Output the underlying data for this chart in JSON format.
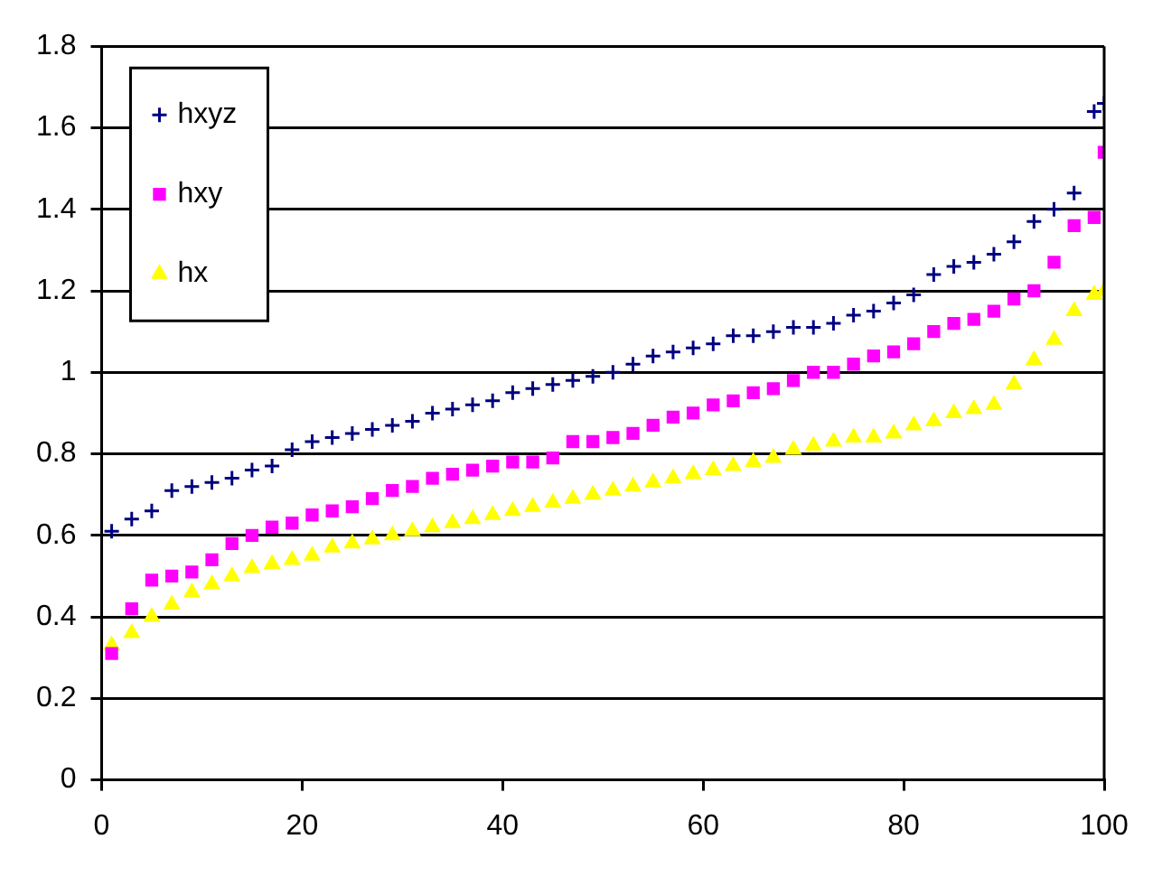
{
  "chart_data": {
    "type": "scatter",
    "xlim": [
      0,
      100
    ],
    "xticks": [
      0,
      20,
      40,
      60,
      80,
      100
    ],
    "ylim": [
      0,
      1.8
    ],
    "yticks": [
      0,
      0.2,
      0.4,
      0.6,
      0.8,
      1,
      1.2,
      1.4,
      1.6,
      1.8
    ],
    "grid": "y",
    "legend": "top left",
    "x": [
      1,
      3,
      5,
      7,
      9,
      11,
      13,
      15,
      17,
      19,
      21,
      23,
      25,
      27,
      29,
      31,
      33,
      35,
      37,
      39,
      41,
      43,
      45,
      47,
      49,
      51,
      53,
      55,
      57,
      59,
      61,
      63,
      65,
      67,
      69,
      71,
      73,
      75,
      77,
      79,
      81,
      83,
      85,
      87,
      89,
      91,
      93,
      95,
      97,
      99,
      100
    ],
    "series": [
      {
        "name": "hxyz",
        "color": "#000080",
        "marker": "cross",
        "values": [
          0.61,
          0.64,
          0.66,
          0.71,
          0.72,
          0.73,
          0.74,
          0.76,
          0.77,
          0.81,
          0.83,
          0.84,
          0.85,
          0.86,
          0.87,
          0.88,
          0.9,
          0.91,
          0.92,
          0.93,
          0.95,
          0.96,
          0.97,
          0.98,
          0.99,
          1,
          1.02,
          1.04,
          1.05,
          1.06,
          1.07,
          1.09,
          1.09,
          1.1,
          1.11,
          1.11,
          1.12,
          1.14,
          1.15,
          1.17,
          1.19,
          1.24,
          1.26,
          1.27,
          1.29,
          1.32,
          1.37,
          1.4,
          1.44,
          1.64,
          1.66
        ]
      },
      {
        "name": "hxy",
        "color": "#ff00ff",
        "marker": "square",
        "values": [
          0.31,
          0.42,
          0.49,
          0.5,
          0.51,
          0.54,
          0.58,
          0.6,
          0.62,
          0.63,
          0.65,
          0.66,
          0.67,
          0.69,
          0.71,
          0.72,
          0.74,
          0.75,
          0.76,
          0.77,
          0.78,
          0.78,
          0.79,
          0.83,
          0.83,
          0.84,
          0.85,
          0.87,
          0.89,
          0.9,
          0.92,
          0.93,
          0.95,
          0.96,
          0.98,
          1,
          1,
          1.02,
          1.04,
          1.05,
          1.07,
          1.1,
          1.12,
          1.13,
          1.15,
          1.18,
          1.2,
          1.27,
          1.36,
          1.38,
          1.54
        ]
      },
      {
        "name": "hx",
        "color": "#ffff00",
        "marker": "triangle",
        "values": [
          0.33,
          0.36,
          0.4,
          0.43,
          0.46,
          0.48,
          0.5,
          0.52,
          0.53,
          0.54,
          0.55,
          0.57,
          0.58,
          0.59,
          0.6,
          0.61,
          0.62,
          0.63,
          0.64,
          0.65,
          0.66,
          0.67,
          0.68,
          0.69,
          0.7,
          0.71,
          0.72,
          0.73,
          0.74,
          0.75,
          0.76,
          0.77,
          0.78,
          0.79,
          0.81,
          0.82,
          0.83,
          0.84,
          0.84,
          0.85,
          0.87,
          0.88,
          0.9,
          0.91,
          0.92,
          0.97,
          1.03,
          1.08,
          1.15,
          1.19,
          1.2
        ]
      }
    ]
  }
}
